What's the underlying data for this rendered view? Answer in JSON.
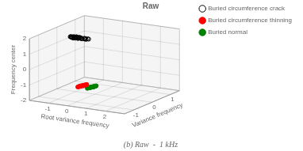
{
  "chart_data": {
    "type": "scatter3d",
    "title": "Raw",
    "subtitle": "(b) Raw  -  1 kHz",
    "xlabel": "Root variance frequency",
    "ylabel": "Variance frequency",
    "zlabel": "Frequency center",
    "xlim": [
      -2,
      3
    ],
    "ylim": [
      -1.5,
      1.5
    ],
    "zlim": [
      -2,
      2
    ],
    "xticks": [
      -1,
      0,
      1,
      2
    ],
    "yticks": [
      -1,
      0,
      1
    ],
    "zticks": [
      -2,
      -1,
      0,
      1,
      2
    ],
    "grid": true,
    "legend": "upper right",
    "series": [
      {
        "name": "Buried circumference crack",
        "color": "black",
        "marker": "open_circle",
        "x": [
          -1.3,
          -1.25,
          -1.2,
          -1.15,
          -1.1,
          -1.05,
          -1.0,
          -0.95,
          -0.9,
          -0.85,
          -0.8,
          -0.75,
          -0.7,
          -0.65,
          -0.6,
          -0.55,
          -0.5,
          -0.45,
          -0.4,
          -0.35,
          -1.28,
          -1.22,
          -1.18,
          -1.12,
          -1.07,
          -1.02,
          -0.97,
          -0.92,
          -0.87,
          -0.82
        ],
        "y": [
          0.0,
          0.05,
          -0.05,
          0.1,
          -0.1,
          0.08,
          -0.08,
          0.12,
          -0.12,
          0.06,
          -0.06,
          0.03,
          -0.03,
          0.09,
          -0.09,
          0.04,
          -0.04,
          0.07,
          -0.07,
          0.02,
          0.01,
          -0.01,
          0.06,
          -0.06,
          0.11,
          -0.11,
          0.05,
          -0.05,
          0.08,
          -0.08
        ],
        "z": [
          1.5,
          1.48,
          1.52,
          1.47,
          1.53,
          1.49,
          1.51,
          1.46,
          1.54,
          1.48,
          1.52,
          1.5,
          1.5,
          1.47,
          1.53,
          1.49,
          1.51,
          1.48,
          1.52,
          1.5,
          1.51,
          1.49,
          1.5,
          1.5,
          1.48,
          1.52,
          1.47,
          1.53,
          1.49,
          1.51
        ]
      },
      {
        "name": "Buried circumference thinning",
        "color": "red",
        "marker": "circle",
        "x": [
          0.15,
          0.2,
          0.1,
          0.25,
          0.05,
          0.22,
          0.08,
          0.27,
          0.03,
          0.18,
          0.12,
          0.17,
          0.13,
          0.23,
          0.07,
          0.21,
          0.09,
          0.24,
          0.06,
          0.19
        ],
        "y": [
          -0.85,
          -0.8,
          -0.9,
          -0.75,
          -0.95,
          -0.82,
          -0.88,
          -0.73,
          -0.97,
          -0.83,
          -0.87,
          -0.81,
          -0.89,
          -0.78,
          -0.92,
          -0.84,
          -0.86,
          -0.77,
          -0.93,
          -0.82
        ],
        "z": [
          -1.0,
          -0.98,
          -1.02,
          -0.97,
          -1.03,
          -0.99,
          -1.01,
          -0.96,
          -1.04,
          -0.98,
          -1.02,
          -1.0,
          -1.0,
          -0.97,
          -1.03,
          -0.99,
          -1.01,
          -0.98,
          -1.02,
          -1.0
        ]
      },
      {
        "name": "Buried normal",
        "color": "green",
        "marker": "circle",
        "x": [
          0.65,
          0.7,
          0.6,
          0.75,
          0.55,
          0.72,
          0.58,
          0.77,
          0.53,
          0.68,
          0.62,
          0.67,
          0.63,
          0.73,
          0.57,
          0.71,
          0.59,
          0.74,
          0.56,
          0.69
        ],
        "y": [
          -0.85,
          -0.8,
          -0.9,
          -0.75,
          -0.95,
          -0.82,
          -0.88,
          -0.73,
          -0.97,
          -0.83,
          -0.87,
          -0.81,
          -0.89,
          -0.78,
          -0.92,
          -0.84,
          -0.86,
          -0.77,
          -0.93,
          -0.82
        ],
        "z": [
          -1.0,
          -0.98,
          -1.02,
          -0.97,
          -1.03,
          -0.99,
          -1.01,
          -0.96,
          -1.04,
          -0.98,
          -1.02,
          -1.0,
          -1.0,
          -0.97,
          -1.03,
          -0.99,
          -1.01,
          -0.98,
          -1.02,
          -1.0
        ]
      }
    ]
  }
}
